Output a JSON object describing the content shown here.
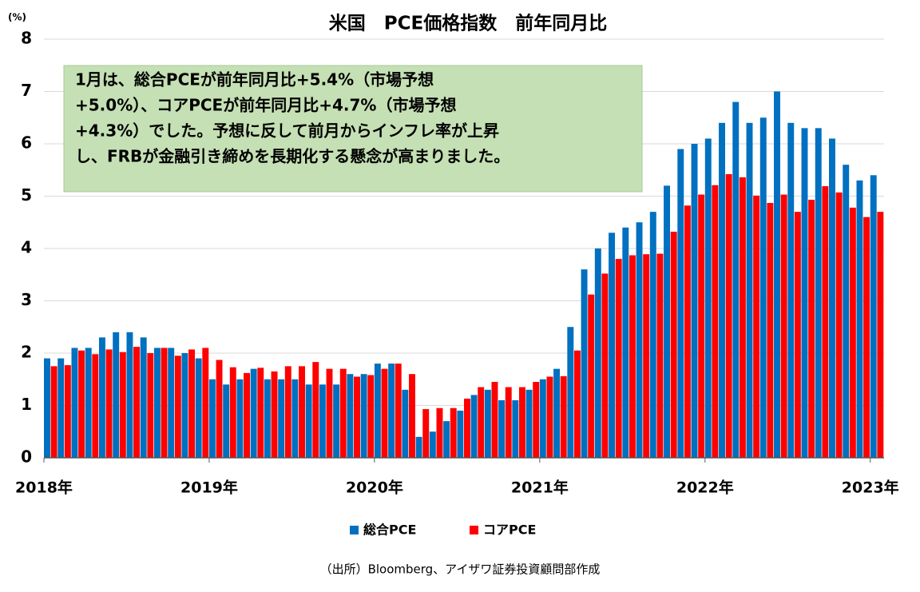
{
  "chart_data": {
    "type": "bar",
    "title": "米国　PCE価格指数　前年同月比",
    "y_label": "(%)",
    "annotation": [
      "1月は、総合PCEが前年同月比+5.4%（市場予想",
      "+5.0%）、コアPCEが前年同月比+4.7%（市場予想",
      "+4.3%）でした。予想に反して前月からインフレ率が上昇",
      "し、FRBが金融引き締めを長期化する懸念が高まりました。"
    ],
    "source": "（出所）Bloomberg、アイザワ証券投資顧問部作成",
    "categories": [
      "2018年",
      null,
      null,
      null,
      null,
      null,
      null,
      null,
      null,
      null,
      null,
      null,
      "2019年",
      null,
      null,
      null,
      null,
      null,
      null,
      null,
      null,
      null,
      null,
      null,
      "2020年",
      null,
      null,
      null,
      null,
      null,
      null,
      null,
      null,
      null,
      null,
      null,
      "2021年",
      null,
      null,
      null,
      null,
      null,
      null,
      null,
      null,
      null,
      null,
      null,
      "2022年",
      null,
      null,
      null,
      null,
      null,
      null,
      null,
      null,
      null,
      null,
      null,
      "2023年"
    ],
    "series": [
      {
        "name": "総合PCE",
        "color": "#0070c0",
        "values": [
          1.9,
          1.9,
          2.1,
          2.1,
          2.3,
          2.4,
          2.4,
          2.3,
          2.1,
          2.1,
          2.0,
          1.9,
          1.5,
          1.4,
          1.5,
          1.7,
          1.5,
          1.5,
          1.5,
          1.4,
          1.4,
          1.4,
          1.6,
          1.6,
          1.8,
          1.8,
          1.3,
          0.4,
          0.5,
          0.7,
          0.9,
          1.2,
          1.3,
          1.1,
          1.1,
          1.3,
          1.5,
          1.7,
          2.5,
          3.6,
          4.0,
          4.3,
          4.4,
          4.5,
          4.7,
          5.2,
          5.9,
          6.0,
          6.1,
          6.4,
          6.8,
          6.4,
          6.5,
          7.0,
          6.4,
          6.3,
          6.3,
          6.1,
          5.6,
          5.3,
          5.4
        ]
      },
      {
        "name": "コアPCE",
        "color": "#ff0000",
        "values": [
          1.75,
          1.77,
          2.05,
          1.98,
          2.07,
          2.02,
          2.12,
          2.0,
          2.1,
          1.95,
          2.07,
          2.1,
          1.87,
          1.73,
          1.62,
          1.72,
          1.65,
          1.75,
          1.75,
          1.83,
          1.7,
          1.7,
          1.55,
          1.58,
          1.7,
          1.8,
          1.6,
          0.93,
          0.95,
          0.95,
          1.13,
          1.35,
          1.45,
          1.35,
          1.35,
          1.45,
          1.55,
          1.56,
          2.05,
          3.12,
          3.52,
          3.8,
          3.87,
          3.89,
          3.9,
          4.32,
          4.82,
          5.03,
          5.21,
          5.42,
          5.36,
          5.01,
          4.87,
          5.03,
          4.7,
          4.93,
          5.19,
          5.07,
          4.78,
          4.6,
          4.7
        ]
      }
    ],
    "ylim": [
      0,
      8
    ],
    "yticks": [
      0,
      1,
      2,
      3,
      4,
      5,
      6,
      7,
      8
    ],
    "grid": true,
    "legend": "bottom"
  }
}
